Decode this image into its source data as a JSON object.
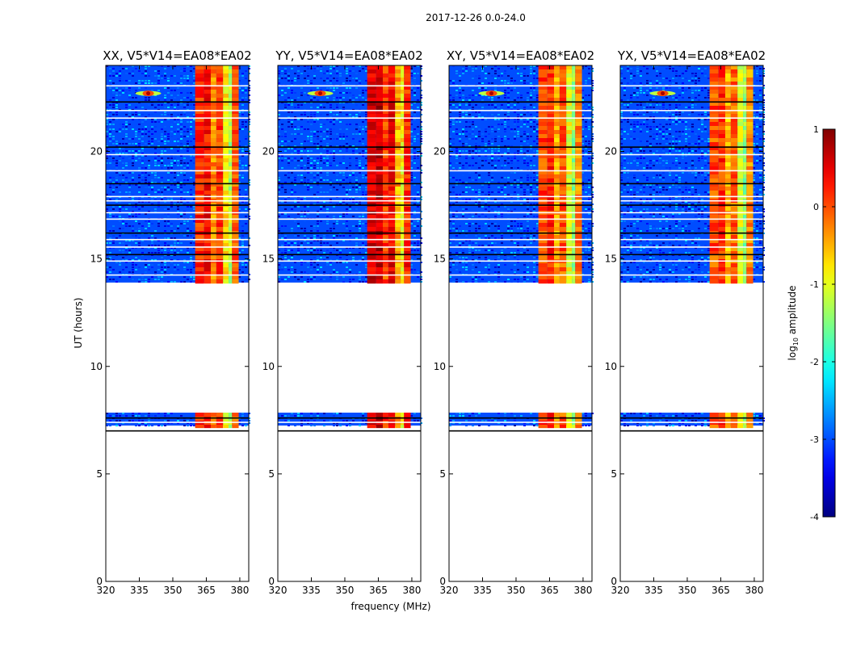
{
  "figure_title": "2017-12-26 0.0-24.0",
  "chart_data": {
    "type": "heatmap",
    "suptitle": "2017-12-26 0.0-24.0",
    "panels": [
      {
        "title": "XX, V5*V14=EA08*EA02",
        "intensity": 0.0
      },
      {
        "title": "YY, V5*V14=EA08*EA02",
        "intensity": 0.35
      },
      {
        "title": "XY, V5*V14=EA08*EA02",
        "intensity": -0.15
      },
      {
        "title": "YX, V5*V14=EA08*EA02",
        "intensity": -0.2
      }
    ],
    "xlabel": "frequency (MHz)",
    "ylabel": "UT (hours)",
    "xlim": [
      320,
      384
    ],
    "ylim": [
      0,
      24
    ],
    "xticks": [
      320,
      335,
      350,
      365,
      380
    ],
    "yticks": [
      0,
      5,
      10,
      15,
      20
    ],
    "data_intervals_hours": [
      [
        13.9,
        24.0
      ],
      [
        7.25,
        7.85
      ]
    ],
    "flagged_rows_hours": [
      23.05,
      22.3,
      21.9,
      21.55,
      20.2,
      19.85,
      19.1,
      18.5,
      17.9,
      17.7,
      17.5,
      17.15,
      16.85,
      16.2,
      15.9,
      15.55,
      15.2,
      14.9,
      14.25,
      7.6,
      7.4,
      7.1,
      7.0
    ],
    "rfi_bands_mhz": [
      [
        360,
        364,
        0.2
      ],
      [
        364,
        367,
        0.35
      ],
      [
        367,
        369.5,
        -0.3
      ],
      [
        369.5,
        372.5,
        0.1
      ],
      [
        372.5,
        375,
        -0.8
      ],
      [
        375,
        376.5,
        -1.2
      ],
      [
        376.5,
        379.5,
        -0.1
      ]
    ],
    "narrowband_source": {
      "freq_mhz": 339,
      "ut_hours": 22.7,
      "log_amplitude": 0.8
    },
    "background_log_amplitude": -3.0,
    "colorbar": {
      "label": "log10 amplitude",
      "label_base": "log",
      "label_sub": "10",
      "label_rest": " amplitude",
      "min": -4,
      "max": 1,
      "ticks": [
        -4,
        -3,
        -2,
        -1,
        0,
        1
      ],
      "colormap": "jet"
    }
  }
}
